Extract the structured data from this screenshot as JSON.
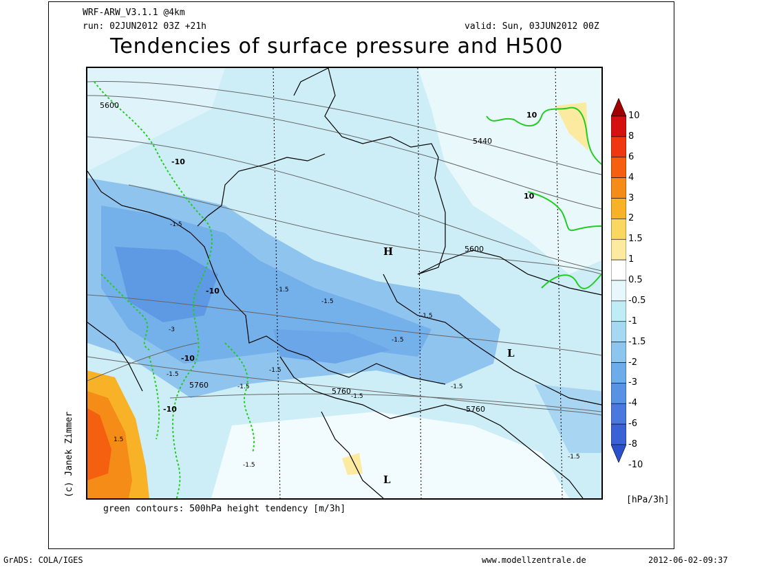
{
  "header": {
    "model": "WRF-ARW_V3.1.1 @4km",
    "run": "run: 02JUN2012 03Z +21h",
    "valid": "valid: Sun, 03JUN2012 00Z",
    "title": "Tendencies of surface pressure and H500"
  },
  "map": {
    "highs": [
      "H"
    ],
    "lows": [
      "L",
      "L"
    ],
    "h500_contour_labels": [
      "5600",
      "5440",
      "5600",
      "5760",
      "5760",
      "5760"
    ],
    "pressure_tendency_labels": [
      "-1.5",
      "-1.5",
      "-1.5",
      "-1.5",
      "-1.5",
      "-1.5",
      "-1.5",
      "-1.5",
      "-1.5",
      "-1.5",
      "-1.5",
      "-3",
      "1.5",
      "-1.5"
    ],
    "height_tendency_labels": [
      "-10",
      "-10",
      "-10",
      "-10",
      "10",
      "10"
    ]
  },
  "colorbar": {
    "levels": [
      "10",
      "8",
      "6",
      "4",
      "3",
      "2",
      "1.5",
      "1",
      "0.5",
      "-0.5",
      "-1",
      "-1.5",
      "-2",
      "-3",
      "-4",
      "-6",
      "-8",
      "-10"
    ],
    "colors": [
      "#a00000",
      "#d41010",
      "#f03810",
      "#f46010",
      "#f68c18",
      "#f7b228",
      "#fad860",
      "#fbeaa0",
      "#ffffff",
      "#e6f8fb",
      "#c0ecf6",
      "#a6d8f2",
      "#8cc6ee",
      "#6cacea",
      "#5892e4",
      "#4a78de",
      "#3a62d6",
      "#2a50cc"
    ],
    "units": "[hPa/3h]"
  },
  "footer": {
    "legend_note": "green contours: 500hPa height tendency [m/3h]",
    "credit": "(c) Janek Zimmer",
    "software": "GrADS: COLA/IGES",
    "website": "www.modellzentrale.de",
    "timestamp": "2012-06-02-09:37"
  }
}
